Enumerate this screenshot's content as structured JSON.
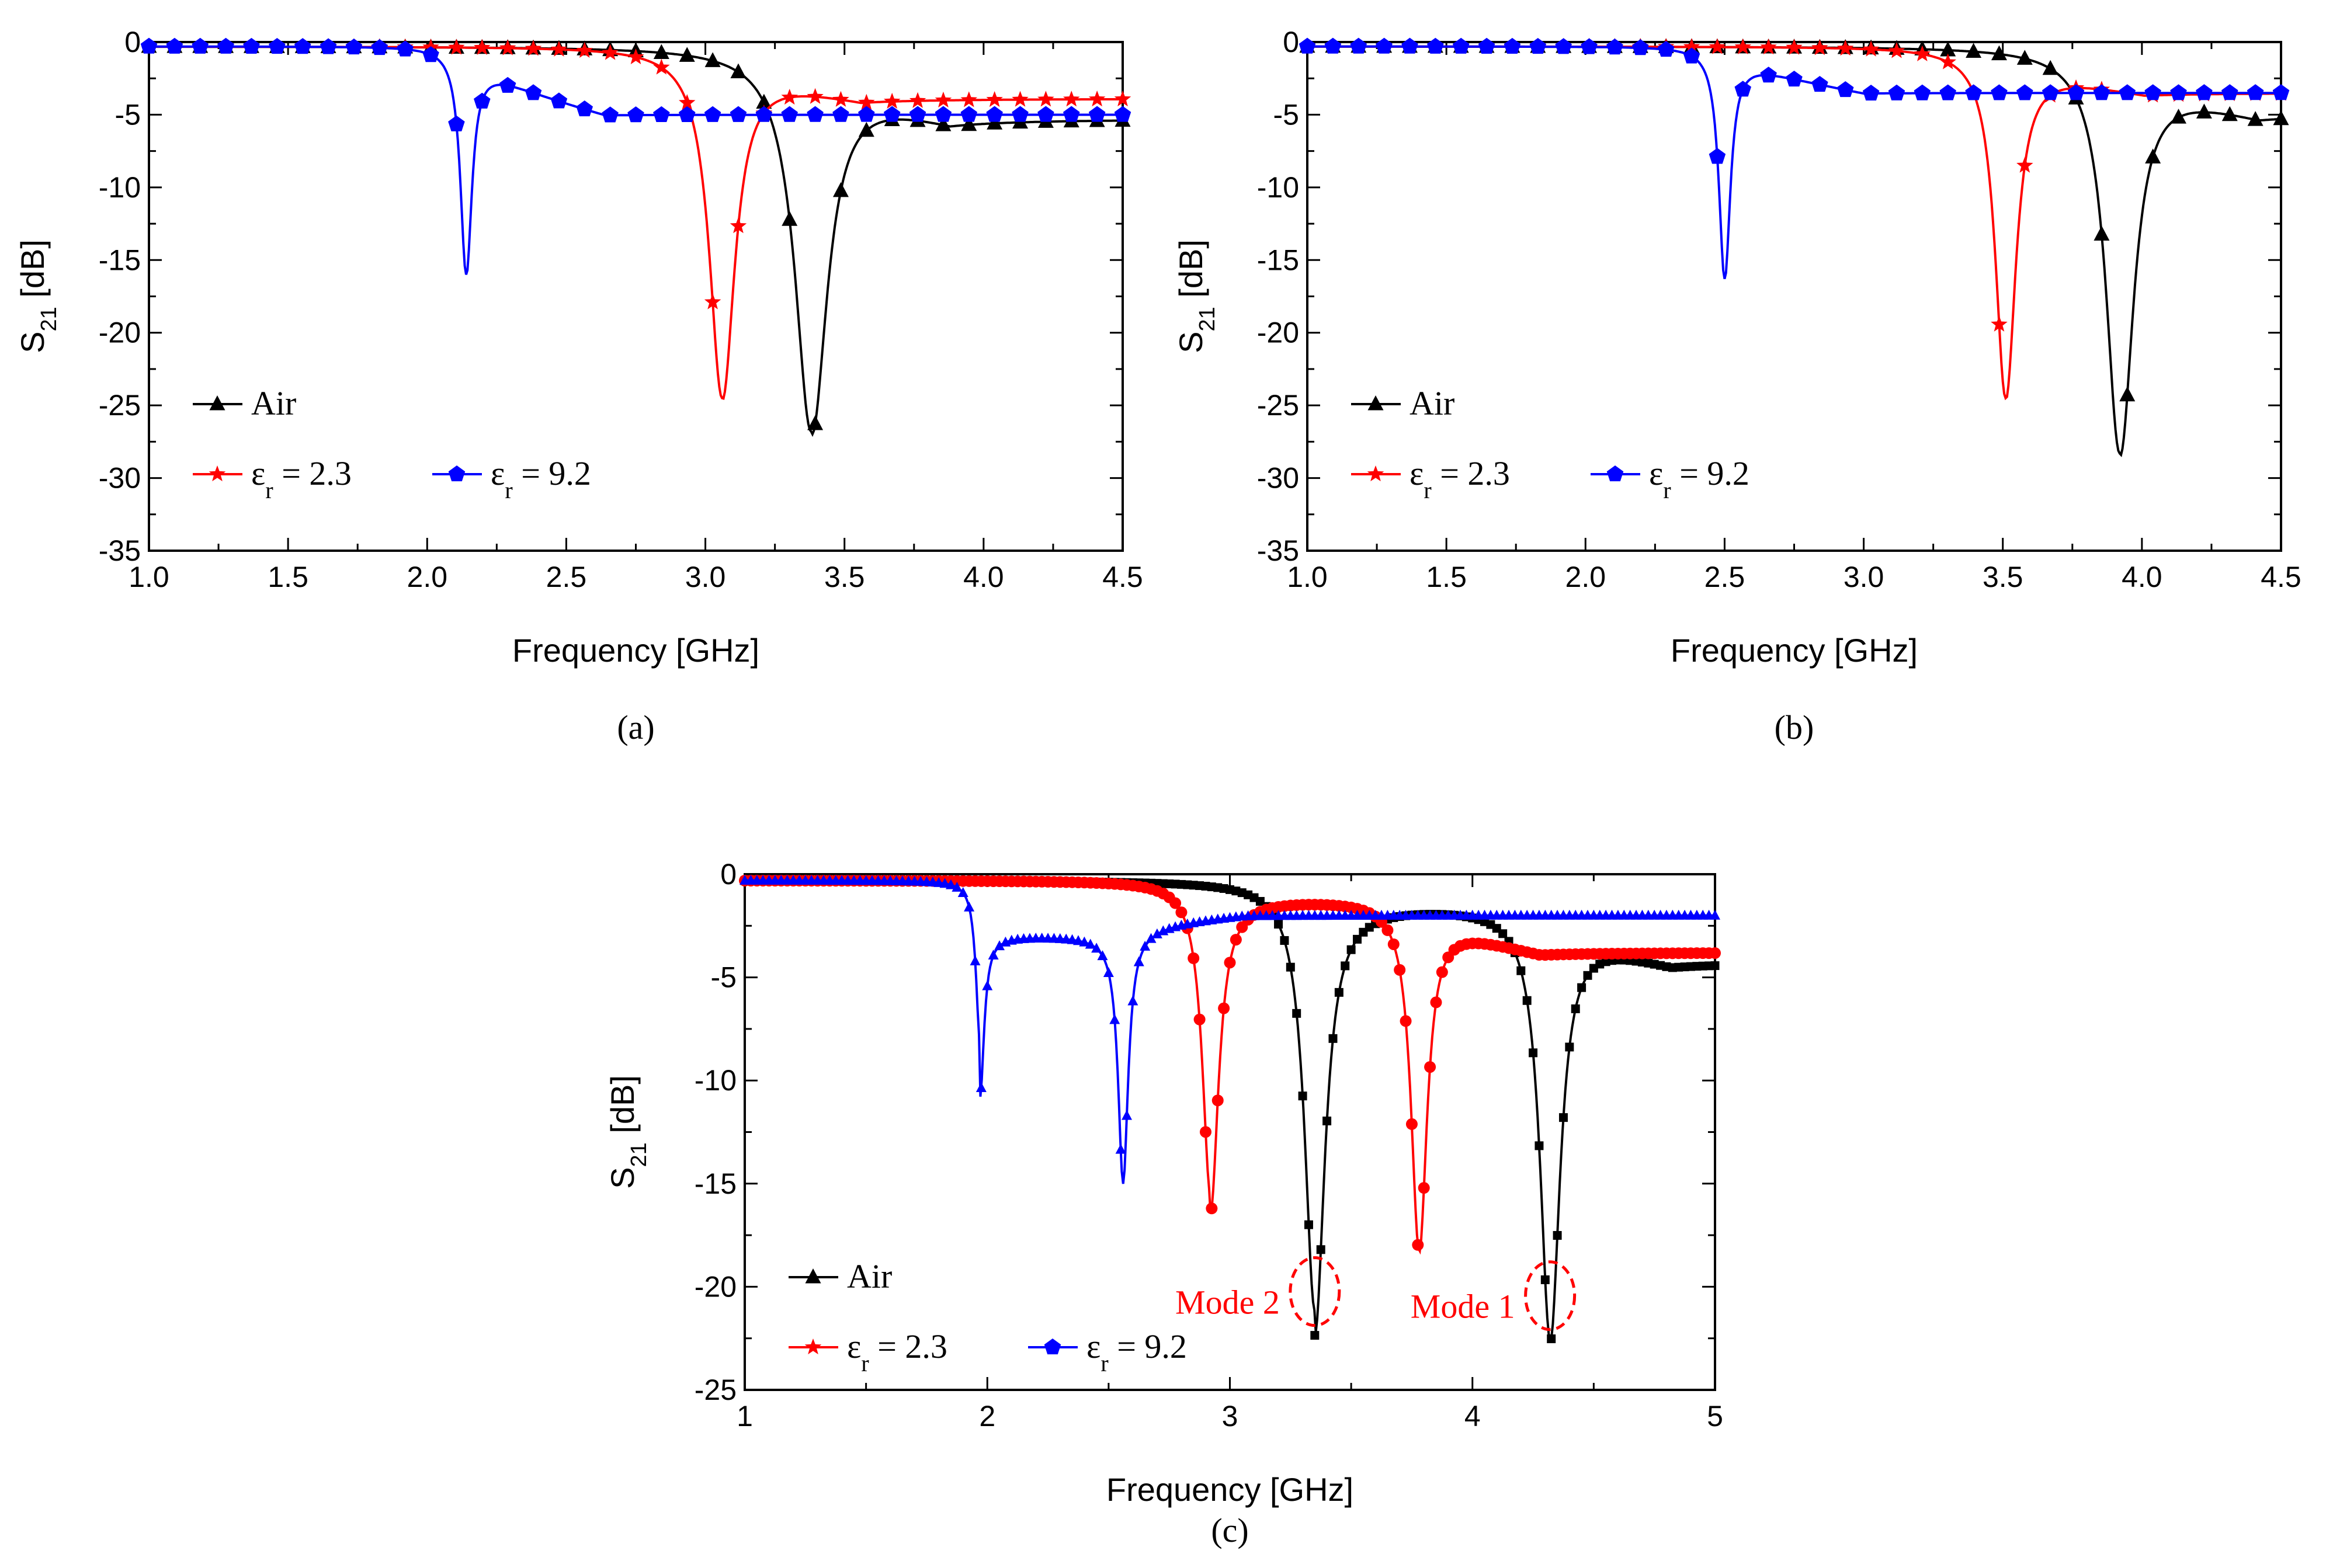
{
  "figure": {
    "panels": [
      "(a)",
      "(b)",
      "(c)"
    ]
  },
  "chart_data": [
    {
      "type": "line",
      "panel_label": "(a)",
      "xlabel": "Frequency [GHz]",
      "ylabel_main": "S",
      "ylabel_sub": "21",
      "ylabel_tail": " [dB]",
      "xlim": [
        1.0,
        4.5
      ],
      "ylim": [
        -35,
        0
      ],
      "xticks": [
        "1.0",
        "1.5",
        "2.0",
        "2.5",
        "3.0",
        "3.5",
        "4.0",
        "4.5"
      ],
      "yticks": [
        "0",
        "-5",
        "-10",
        "-15",
        "-20",
        "-25",
        "-30",
        "-35"
      ],
      "legend_loc": "lower-left",
      "series": [
        {
          "name": "Air",
          "label": "Air",
          "color": "#000000",
          "marker": "triangle",
          "f0": 3.38,
          "depth": 26.5,
          "width": 0.07,
          "base_lo": 0.3,
          "base_hi": 5.3
        },
        {
          "name": "εr = 2.3",
          "label": "= 2.3",
          "color": "#ff0000",
          "marker": "star",
          "f0": 3.06,
          "depth": 24.2,
          "width": 0.055,
          "base_lo": 0.3,
          "base_hi": 3.9
        },
        {
          "name": "εr = 9.2",
          "label": "= 9.2",
          "color": "#0000ff",
          "marker": "pentagon",
          "f0": 2.14,
          "depth": 15.7,
          "width": 0.025,
          "base_lo": 0.3,
          "base_hi": 5.0
        }
      ]
    },
    {
      "type": "line",
      "panel_label": "(b)",
      "xlabel": "Frequency [GHz]",
      "ylabel_main": "S",
      "ylabel_sub": "21",
      "ylabel_tail": " [dB]",
      "xlim": [
        1.0,
        4.5
      ],
      "ylim": [
        -35,
        0
      ],
      "xticks": [
        "1.0",
        "1.5",
        "2.0",
        "2.5",
        "3.0",
        "3.5",
        "4.0",
        "4.5"
      ],
      "yticks": [
        "0",
        "-5",
        "-10",
        "-15",
        "-20",
        "-25",
        "-30",
        "-35"
      ],
      "legend_loc": "lower-left",
      "series": [
        {
          "name": "Air",
          "label": "Air",
          "color": "#000000",
          "marker": "triangle",
          "f0": 3.92,
          "depth": 28.0,
          "width": 0.06,
          "base_lo": 0.3,
          "base_hi": 5.0
        },
        {
          "name": "εr = 2.3",
          "label": "= 2.3",
          "color": "#ff0000",
          "marker": "star",
          "f0": 3.51,
          "depth": 24.2,
          "width": 0.045,
          "base_lo": 0.3,
          "base_hi": 3.5
        },
        {
          "name": "εr = 9.2",
          "label": "= 9.2",
          "color": "#0000ff",
          "marker": "pentagon",
          "f0": 2.5,
          "depth": 16.0,
          "width": 0.025,
          "base_lo": 0.3,
          "base_hi": 3.5
        }
      ]
    },
    {
      "type": "line",
      "panel_label": "(c)",
      "xlabel": "Frequency [GHz]",
      "ylabel_main": "S",
      "ylabel_sub": "21",
      "ylabel_tail": " [dB]",
      "xlim": [
        1,
        5
      ],
      "ylim": [
        -25,
        0
      ],
      "xticks": [
        "1",
        "2",
        "3",
        "4",
        "5"
      ],
      "yticks": [
        "0",
        "-5",
        "-10",
        "-15",
        "-20",
        "-25"
      ],
      "legend_loc": "lower-left",
      "series": [
        {
          "name": "Air",
          "label": "Air",
          "color": "#000000",
          "marker": "square",
          "modes": [
            {
              "f0": 3.35,
              "depth": 20.8,
              "width": 0.05
            },
            {
              "f0": 4.32,
              "depth": 21.0,
              "width": 0.05
            }
          ],
          "base_lo": 0.3,
          "base_mid": 1.5,
          "base_hi": 4.3
        },
        {
          "name": "εr = 2.3",
          "label": "= 2.3",
          "color": "#ff0000",
          "marker": "circle",
          "modes": [
            {
              "f0": 2.92,
              "depth": 15.2,
              "width": 0.04
            },
            {
              "f0": 3.78,
              "depth": 17.0,
              "width": 0.04
            }
          ],
          "base_lo": 0.3,
          "base_mid": 1.2,
          "base_hi": 3.8
        },
        {
          "name": "εr = 9.2",
          "label": "= 9.2",
          "color": "#0000ff",
          "marker": "triangle",
          "modes": [
            {
              "f0": 1.97,
              "depth": 7.8,
              "width": 0.02
            },
            {
              "f0": 2.56,
              "depth": 12.0,
              "width": 0.025
            }
          ],
          "base_lo": 0.3,
          "base_mid": 3.0,
          "base_hi": 2.0
        }
      ],
      "annotations": [
        {
          "text": "Mode 2",
          "x": 3.35,
          "y": -20.8
        },
        {
          "text": "Mode 1",
          "x": 4.32,
          "y": -21.0
        }
      ]
    }
  ]
}
